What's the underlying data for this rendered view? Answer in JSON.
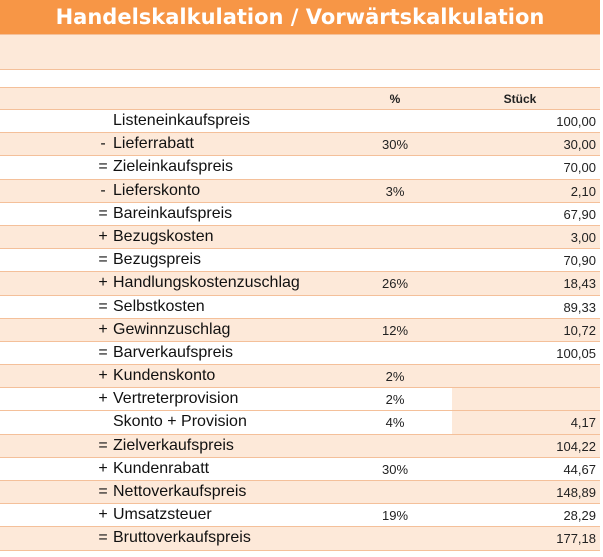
{
  "title": "Handelskalkulation / Vorwärtskalkulation",
  "header": {
    "percent": "%",
    "unit": "Stück"
  },
  "rows": [
    {
      "prefix": "",
      "label": "Listeneinkaufspreis",
      "percent": "",
      "value": "100,00",
      "bg": "white"
    },
    {
      "prefix": "-",
      "label": "Lieferrabatt",
      "percent": "30%",
      "value": "30,00",
      "bg": "peach"
    },
    {
      "prefix": "=",
      "label": "Zieleinkaufspreis",
      "percent": "",
      "value": "70,00",
      "bg": "white"
    },
    {
      "prefix": "-",
      "label": "Lieferskonto",
      "percent": "3%",
      "value": "2,10",
      "bg": "peach"
    },
    {
      "prefix": "=",
      "label": "Bareinkaufspreis",
      "percent": "",
      "value": "67,90",
      "bg": "white"
    },
    {
      "prefix": "+",
      "label": "Bezugskosten",
      "percent": "",
      "value": "3,00",
      "bg": "peach"
    },
    {
      "prefix": "=",
      "label": "Bezugspreis",
      "percent": "",
      "value": "70,90",
      "bg": "white"
    },
    {
      "prefix": "+",
      "label": "Handlungskostenzuschlag",
      "percent": "26%",
      "value": "18,43",
      "bg": "peach"
    },
    {
      "prefix": "=",
      "label": "Selbstkosten",
      "percent": "",
      "value": "89,33",
      "bg": "white"
    },
    {
      "prefix": "+",
      "label": "Gewinnzuschlag",
      "percent": "12%",
      "value": "10,72",
      "bg": "peach"
    },
    {
      "prefix": "=",
      "label": "Barverkaufspreis",
      "percent": "",
      "value": "100,05",
      "bg": "white"
    },
    {
      "prefix": "+",
      "label": "Kundenskonto",
      "percent": "2%",
      "value": "",
      "bg": "peach"
    },
    {
      "prefix": "+",
      "label": "Vertreterprovision",
      "percent": "2%",
      "value": "",
      "bg": "split"
    },
    {
      "prefix": "",
      "label": "Skonto + Provision",
      "percent": "4%",
      "value": "4,17",
      "bg": "split"
    },
    {
      "prefix": "=",
      "label": "Zielverkaufspreis",
      "percent": "",
      "value": "104,22",
      "bg": "peach"
    },
    {
      "prefix": "+",
      "label": "Kundenrabatt",
      "percent": "30%",
      "value": "44,67",
      "bg": "white"
    },
    {
      "prefix": "=",
      "label": "Nettoverkaufspreis",
      "percent": "",
      "value": "148,89",
      "bg": "peach"
    },
    {
      "prefix": "+",
      "label": "Umsatzsteuer",
      "percent": "19%",
      "value": "28,29",
      "bg": "white"
    },
    {
      "prefix": "=",
      "label": "Bruttoverkaufspreis",
      "percent": "",
      "value": "177,18",
      "bg": "peach"
    }
  ]
}
